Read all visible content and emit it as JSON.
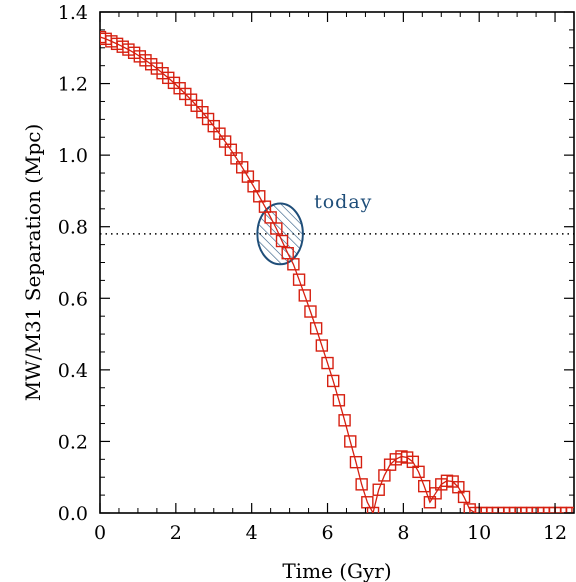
{
  "chart_data": {
    "type": "line",
    "title": "",
    "xlabel": "Time (Gyr)",
    "ylabel": "MW/M31 Separation (Mpc)",
    "xlim": [
      0,
      12.5
    ],
    "ylim": [
      0,
      1.4
    ],
    "xticks": [
      0,
      2,
      4,
      6,
      8,
      10,
      12
    ],
    "yticks": [
      0.0,
      0.2,
      0.4,
      0.6,
      0.8,
      1.0,
      1.2,
      1.4
    ],
    "xtick_labels": [
      "0",
      "2",
      "4",
      "6",
      "8",
      "10",
      "12"
    ],
    "ytick_labels": [
      "0.0",
      "0.2",
      "0.4",
      "0.6",
      "0.8",
      "1.0",
      "1.2",
      "1.4"
    ],
    "grid": false,
    "series": [
      {
        "color": "#d62011",
        "marker": "open-square",
        "x": [
          0.0,
          0.15,
          0.3,
          0.45,
          0.6,
          0.75,
          0.9,
          1.05,
          1.2,
          1.35,
          1.5,
          1.65,
          1.8,
          1.95,
          2.1,
          2.25,
          2.4,
          2.55,
          2.7,
          2.85,
          3.0,
          3.15,
          3.3,
          3.45,
          3.6,
          3.75,
          3.9,
          4.05,
          4.2,
          4.35,
          4.5,
          4.65,
          4.8,
          4.95,
          5.1,
          5.25,
          5.4,
          5.55,
          5.7,
          5.85,
          6.0,
          6.15,
          6.3,
          6.45,
          6.6,
          6.75,
          6.9,
          7.05,
          7.2,
          7.35,
          7.5,
          7.65,
          7.8,
          7.95,
          8.1,
          8.25,
          8.4,
          8.55,
          8.7,
          8.85,
          9.0,
          9.15,
          9.3,
          9.45,
          9.6,
          9.75,
          9.9,
          10.05,
          10.2,
          10.35,
          10.5,
          10.65,
          10.8,
          10.95,
          11.1,
          11.25,
          11.4,
          11.55,
          11.7,
          11.85,
          12.0,
          12.15,
          12.3,
          12.45
        ],
        "y": [
          1.33,
          1.325,
          1.318,
          1.311,
          1.303,
          1.295,
          1.286,
          1.276,
          1.265,
          1.254,
          1.242,
          1.229,
          1.216,
          1.202,
          1.187,
          1.171,
          1.155,
          1.138,
          1.12,
          1.101,
          1.081,
          1.06,
          1.038,
          1.015,
          0.991,
          0.966,
          0.94,
          0.913,
          0.885,
          0.856,
          0.826,
          0.795,
          0.76,
          0.726,
          0.695,
          0.652,
          0.608,
          0.563,
          0.516,
          0.468,
          0.419,
          0.369,
          0.315,
          0.259,
          0.2,
          0.142,
          0.08,
          0.03,
          0.0,
          0.065,
          0.105,
          0.135,
          0.15,
          0.158,
          0.155,
          0.143,
          0.115,
          0.075,
          0.03,
          0.055,
          0.08,
          0.09,
          0.088,
          0.072,
          0.045,
          0.01,
          0.0,
          0.0,
          0.0,
          0.0,
          0.0,
          0.0,
          0.0,
          0.0,
          0.0,
          0.0,
          0.0,
          0.0,
          0.0,
          0.0,
          0.0,
          0.0,
          0.0,
          0.0
        ]
      }
    ],
    "reference_line": {
      "y": 0.78,
      "style": "dotted",
      "color": "#000000"
    },
    "annotation": {
      "text": "today",
      "color": "#1f4e79",
      "x": 4.75,
      "y": 0.78,
      "rx": 0.6,
      "ry": 0.085,
      "style": "hatched-ellipse"
    }
  }
}
